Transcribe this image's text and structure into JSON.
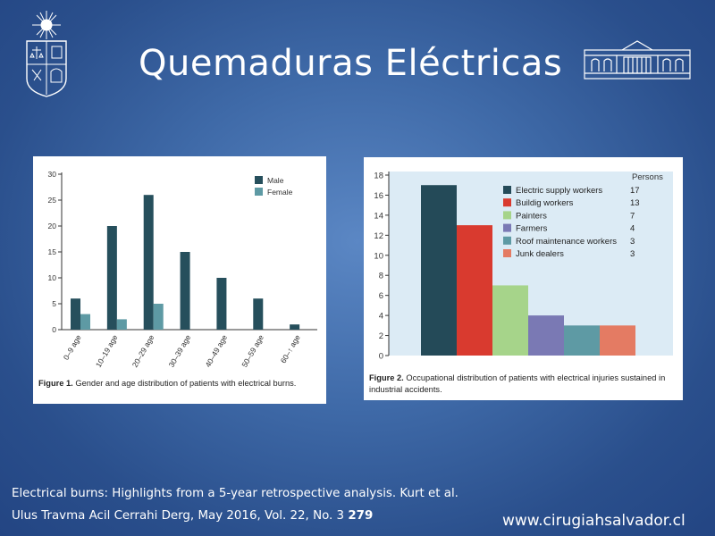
{
  "title": "Quemaduras Eléctricas",
  "colors": {
    "male": "#264f5c",
    "female": "#5e9aa4",
    "axis": "#333333"
  },
  "chart_data": [
    {
      "type": "bar",
      "categories": [
        "0–9 age",
        "10–19 age",
        "20–29 age",
        "30–39 age",
        "40–49 age",
        "50–59 age",
        "60–↑ age"
      ],
      "series": [
        {
          "name": "Male",
          "color": "#264f5c",
          "values": [
            6,
            20,
            26,
            15,
            10,
            6,
            1
          ]
        },
        {
          "name": "Female",
          "color": "#5e9aa4",
          "values": [
            3,
            2,
            5,
            0,
            0,
            0,
            0
          ]
        }
      ],
      "yticks": [
        0,
        5,
        10,
        15,
        20,
        25,
        30
      ],
      "ylim": [
        0,
        30
      ],
      "legend": "top-right",
      "caption_label": "Figure 1.",
      "caption_text": "Gender and age distribution of patients with electrical burns."
    },
    {
      "type": "bar",
      "categories": [
        "Electric supply workers",
        "Buildig workers",
        "Painters",
        "Farmers",
        "Roof maintenance workers",
        "Junk dealers"
      ],
      "values": [
        17,
        13,
        7,
        4,
        3,
        3
      ],
      "value_labels": [
        "17",
        "13",
        "7",
        "4",
        "3",
        "3"
      ],
      "colors": [
        "#244a58",
        "#d93a2f",
        "#a6d48a",
        "#7a79b4",
        "#5e9aa4",
        "#e47b63"
      ],
      "legend_header": "Persons",
      "yticks": [
        0,
        2,
        4,
        6,
        8,
        10,
        12,
        14,
        16,
        18
      ],
      "ylim": [
        0,
        18
      ],
      "legend": "top-right",
      "background": "#dcebf5",
      "caption_label": "Figure 2.",
      "caption_text": "Occupational distribution of patients with electrical injuries sustained in industrial accidents."
    }
  ],
  "citation": {
    "line1": "Electrical burns: Highlights from a 5-year retrospective analysis.  Kurt et al.",
    "line2": "Ulus Travma Acil Cerrahi Derg, May 2016, Vol. 22, No. 3",
    "page": "279"
  },
  "website": "www.cirugiahsalvador.cl",
  "icons": {
    "left": "university-crest-icon",
    "right": "building-facade-icon"
  }
}
